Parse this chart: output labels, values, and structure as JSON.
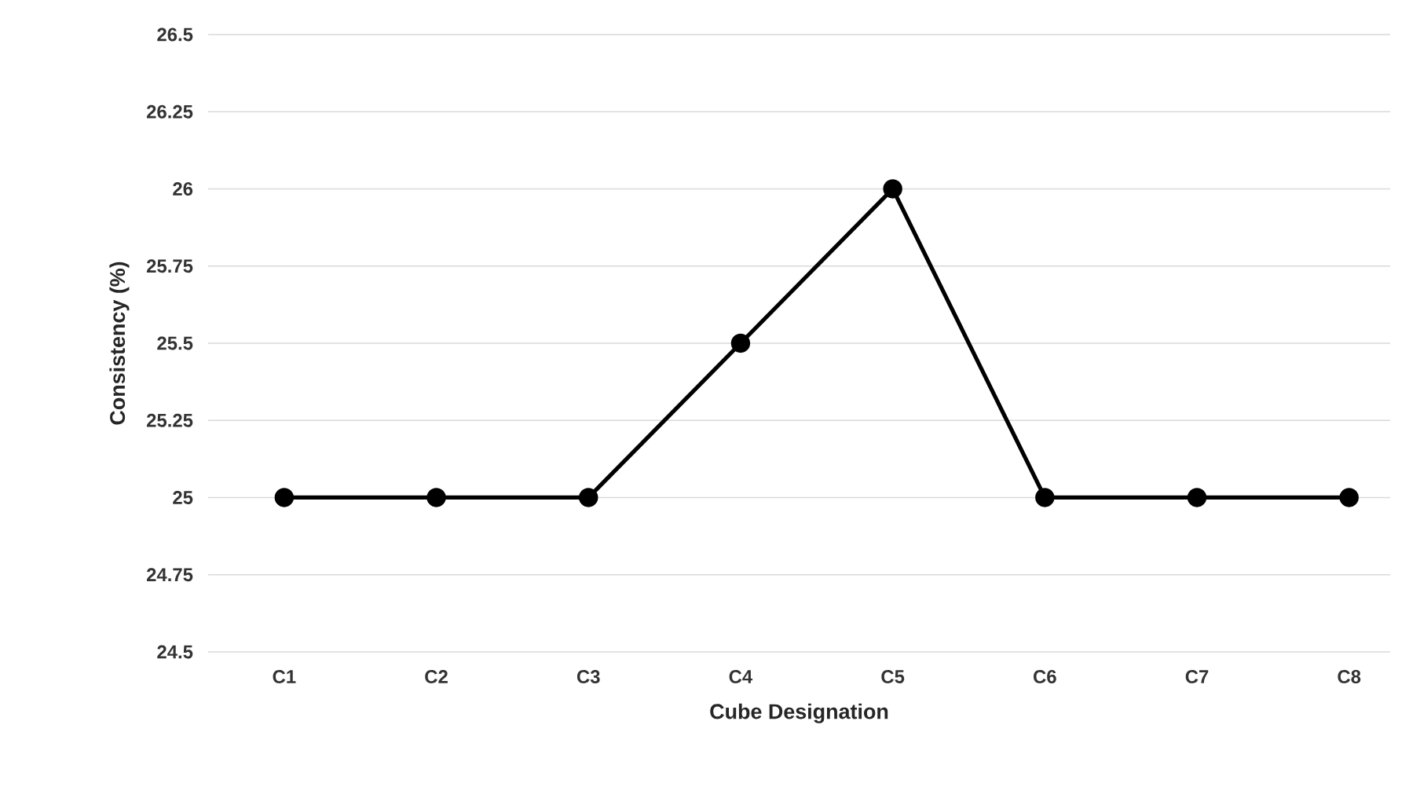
{
  "chart_data": {
    "type": "line",
    "xlabel": "Cube Designation",
    "ylabel": "Consistency (%)",
    "categories": [
      "C1",
      "C2",
      "C3",
      "C4",
      "C5",
      "C6",
      "C7",
      "C8"
    ],
    "series": [
      {
        "color": "#000000",
        "values": [
          25,
          25,
          25,
          25.5,
          26,
          25,
          25,
          25
        ]
      }
    ],
    "ylim": [
      24.5,
      26.5
    ],
    "yticks": [
      24.5,
      24.75,
      25,
      25.25,
      25.5,
      25.75,
      26,
      26.25,
      26.5
    ],
    "grid": "y",
    "marker": "circle",
    "line_style": "solid",
    "legend": false
  }
}
